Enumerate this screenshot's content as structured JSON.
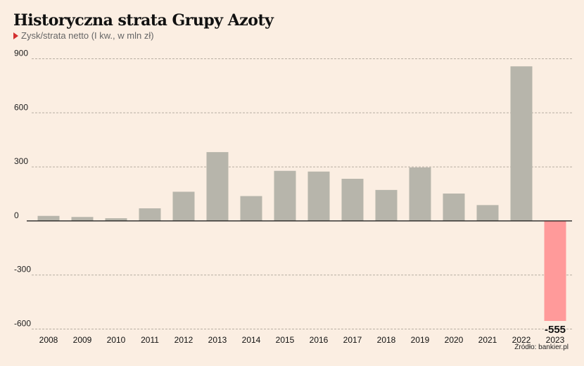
{
  "title": "Historyczna strata Grupy Azoty",
  "subtitle": "Zysk/strata netto (I kw., w mln zł)",
  "source": "Źródło: bankier.pl",
  "colors": {
    "positive": "#b7b5ab",
    "negative": "#ff9a9a",
    "grid": "#b8aea3",
    "background": "#fbeee2"
  },
  "chart_data": {
    "type": "bar",
    "title": "Historyczna strata Grupy Azoty",
    "subtitle": "Zysk/strata netto (I kw., w mln zł)",
    "xlabel": "",
    "ylabel": "",
    "ylim": [
      -600,
      900
    ],
    "yticks": [
      900,
      600,
      300,
      0,
      -300,
      -600
    ],
    "ytick_labels": [
      "900",
      "600",
      "300",
      "0",
      "-300",
      "-600"
    ],
    "grid": true,
    "legend": "none",
    "categories": [
      "2008",
      "2009",
      "2010",
      "2011",
      "2012",
      "2013",
      "2014",
      "2015",
      "2016",
      "2017",
      "2018",
      "2019",
      "2020",
      "2021",
      "2022",
      "2023"
    ],
    "values": [
      28,
      22,
      15,
      70,
      162,
      382,
      138,
      278,
      274,
      234,
      172,
      297,
      152,
      88,
      858,
      -555
    ],
    "annotations": [
      {
        "category": "2023",
        "label": "-555"
      }
    ]
  }
}
